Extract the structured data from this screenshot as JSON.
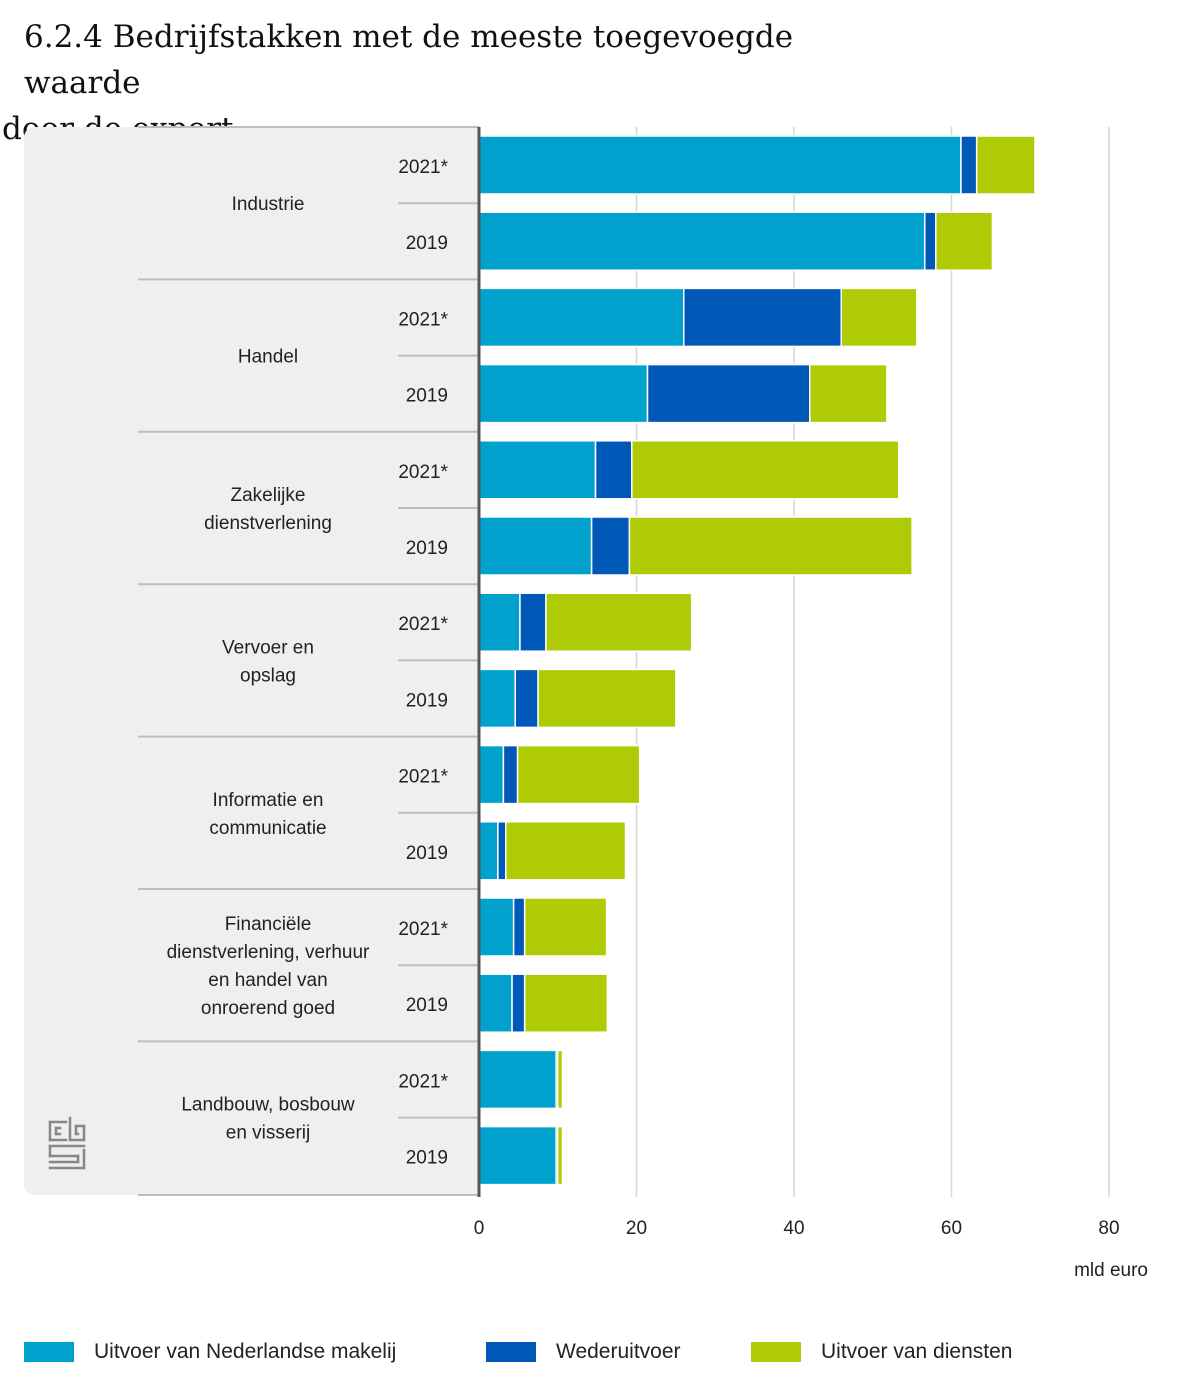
{
  "title_line1": "6.2.4 Bedrijfstakken met de meeste toegevoegde waarde",
  "title_line2": "door de export",
  "logo_text": "cbs",
  "colors": {
    "makelij": "#00A1CD",
    "wederuitvoer": "#0058B8",
    "diensten": "#AFCB05",
    "panel": "#EFEFEF",
    "grid": "#D6D6D6",
    "axis": "#555555"
  },
  "chart_data": {
    "type": "bar",
    "orientation": "horizontal",
    "stacked": true,
    "xlabel": "mld euro",
    "xlim": [
      0,
      80
    ],
    "xticks": [
      0,
      20,
      40,
      60,
      80
    ],
    "grid": true,
    "legend_position": "bottom",
    "groups": [
      {
        "name": "Industrie",
        "label_lines": [
          "Industrie"
        ],
        "rows": [
          {
            "year": "2021*",
            "values": [
              61.2,
              2.0,
              7.4
            ]
          },
          {
            "year": "2019",
            "values": [
              56.6,
              1.4,
              7.2
            ]
          }
        ]
      },
      {
        "name": "Handel",
        "label_lines": [
          "Handel"
        ],
        "rows": [
          {
            "year": "2021*",
            "values": [
              26.0,
              20.0,
              9.6
            ]
          },
          {
            "year": "2019",
            "values": [
              21.4,
              20.6,
              9.8
            ]
          }
        ]
      },
      {
        "name": "Zakelijke dienstverlening",
        "label_lines": [
          "Zakelijke",
          "dienstverlening"
        ],
        "rows": [
          {
            "year": "2021*",
            "values": [
              14.8,
              4.6,
              33.9
            ]
          },
          {
            "year": "2019",
            "values": [
              14.3,
              4.8,
              35.9
            ]
          }
        ]
      },
      {
        "name": "Vervoer en opslag",
        "label_lines": [
          "Vervoer en",
          "opslag"
        ],
        "rows": [
          {
            "year": "2021*",
            "values": [
              5.2,
              3.3,
              18.5
            ]
          },
          {
            "year": "2019",
            "values": [
              4.6,
              2.9,
              17.5
            ]
          }
        ]
      },
      {
        "name": "Informatie en communicatie",
        "label_lines": [
          "Informatie en",
          "communicatie"
        ],
        "rows": [
          {
            "year": "2021*",
            "values": [
              3.1,
              1.8,
              15.5
            ]
          },
          {
            "year": "2019",
            "values": [
              2.4,
              1.0,
              15.2
            ]
          }
        ]
      },
      {
        "name": "Financiële dienstverlening, verhuur en handel van onroerend goed",
        "label_lines": [
          "Financiële",
          "dienstverlening, verhuur",
          "en handel van",
          "onroerend goed"
        ],
        "rows": [
          {
            "year": "2021*",
            "values": [
              4.4,
              1.4,
              10.4
            ]
          },
          {
            "year": "2019",
            "values": [
              4.2,
              1.6,
              10.5
            ]
          }
        ]
      },
      {
        "name": "Landbouw, bosbouw en visserij",
        "label_lines": [
          "Landbouw, bosbouw",
          "en visserij"
        ],
        "rows": [
          {
            "year": "2021*",
            "values": [
              9.8,
              0.2,
              0.6
            ]
          },
          {
            "year": "2019",
            "values": [
              9.8,
              0.2,
              0.6
            ]
          }
        ]
      }
    ],
    "series": [
      {
        "name": "Uitvoer van Nederlandse makelij",
        "color": "#00A1CD"
      },
      {
        "name": "Wederuitvoer",
        "color": "#0058B8"
      },
      {
        "name": "Uitvoer van diensten",
        "color": "#AFCB05"
      }
    ]
  }
}
